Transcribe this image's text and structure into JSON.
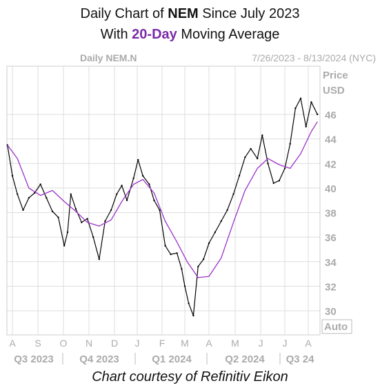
{
  "title": {
    "line1_prefix": "Daily Chart of ",
    "line1_symbol": "NEM",
    "line1_suffix": " Since July 2023",
    "line2_prefix": "With ",
    "line2_highlight": "20-Day",
    "line2_suffix": " Moving Average"
  },
  "caption": "Chart courtesy of Refinitiv Eikon",
  "chart_data": {
    "type": "line",
    "header_left": "Daily NEM.N",
    "header_right": "7/26/2023 - 8/13/2024 (NYC)",
    "y_axis_title": [
      "Price",
      "USD"
    ],
    "y_axis_button": "Auto",
    "ylim": [
      29,
      49
    ],
    "y_ticks": [
      30,
      32,
      34,
      36,
      38,
      40,
      42,
      44,
      46
    ],
    "x_ticks": [
      "A",
      "S",
      "O",
      "N",
      "D",
      "J",
      "F",
      "M",
      "A",
      "M",
      "J",
      "J",
      "A"
    ],
    "quarters": [
      "Q3 2023",
      "Q4 2023",
      "Q1 2024",
      "Q2 2024",
      "Q3 24"
    ],
    "grid": true,
    "colors": {
      "price": "#000000",
      "ma": "#9b30c8",
      "highlight": "#7a2aa8",
      "axis_text": "#aaaaaa",
      "grid": "#dddddd"
    },
    "series": [
      {
        "label": "NEM.N",
        "kind": "price",
        "x": [
          "2023-07-26",
          "2023-08-01",
          "2023-08-07",
          "2023-08-14",
          "2023-08-21",
          "2023-08-28",
          "2023-09-04",
          "2023-09-11",
          "2023-09-18",
          "2023-09-25",
          "2023-10-02",
          "2023-10-06",
          "2023-10-10",
          "2023-10-16",
          "2023-10-23",
          "2023-10-30",
          "2023-11-06",
          "2023-11-13",
          "2023-11-20",
          "2023-11-27",
          "2023-12-04",
          "2023-12-11",
          "2023-12-18",
          "2023-12-27",
          "2024-01-02",
          "2024-01-08",
          "2024-01-16",
          "2024-01-22",
          "2024-01-29",
          "2024-02-05",
          "2024-02-12",
          "2024-02-20",
          "2024-02-26",
          "2024-03-01",
          "2024-03-06",
          "2024-03-12",
          "2024-03-18",
          "2024-03-25",
          "2024-04-01",
          "2024-04-08",
          "2024-04-15",
          "2024-04-22",
          "2024-04-29",
          "2024-05-06",
          "2024-05-13",
          "2024-05-20",
          "2024-05-28",
          "2024-06-03",
          "2024-06-10",
          "2024-06-17",
          "2024-06-24",
          "2024-07-01",
          "2024-07-08",
          "2024-07-15",
          "2024-07-22",
          "2024-07-29",
          "2024-08-05",
          "2024-08-13"
        ],
        "y": [
          43.5,
          41.0,
          39.5,
          38.2,
          39.2,
          39.6,
          40.3,
          39.2,
          38.1,
          37.6,
          35.3,
          36.4,
          39.5,
          38.3,
          37.2,
          37.5,
          36.0,
          34.2,
          37.3,
          38.2,
          39.5,
          40.2,
          39.0,
          40.8,
          42.3,
          41.0,
          40.3,
          39.0,
          38.2,
          35.3,
          34.6,
          34.7,
          33.4,
          32.0,
          30.6,
          29.6,
          33.6,
          34.2,
          35.5,
          36.4,
          37.3,
          38.2,
          39.5,
          41.0,
          42.5,
          43.2,
          42.4,
          44.3,
          42.0,
          40.4,
          40.6,
          41.6,
          43.6,
          46.5,
          47.3,
          45.0,
          47.0,
          46.0
        ]
      },
      {
        "label": "20-Day",
        "kind": "ma",
        "x": [
          "2023-07-26",
          "2023-08-07",
          "2023-08-21",
          "2023-09-04",
          "2023-09-18",
          "2023-10-02",
          "2023-10-16",
          "2023-10-30",
          "2023-11-13",
          "2023-11-27",
          "2023-12-11",
          "2023-12-27",
          "2024-01-08",
          "2024-01-22",
          "2024-02-05",
          "2024-02-20",
          "2024-03-04",
          "2024-03-18",
          "2024-04-01",
          "2024-04-15",
          "2024-04-29",
          "2024-05-13",
          "2024-05-28",
          "2024-06-10",
          "2024-06-24",
          "2024-07-08",
          "2024-07-22",
          "2024-08-05",
          "2024-08-13"
        ],
        "y": [
          43.5,
          42.4,
          40.0,
          39.4,
          39.8,
          38.9,
          38.1,
          37.2,
          36.9,
          37.4,
          38.9,
          40.3,
          40.7,
          39.6,
          37.3,
          35.6,
          34.0,
          32.7,
          32.8,
          34.3,
          37.2,
          39.8,
          41.6,
          42.4,
          41.9,
          41.6,
          42.8,
          44.6,
          45.4
        ]
      }
    ]
  }
}
